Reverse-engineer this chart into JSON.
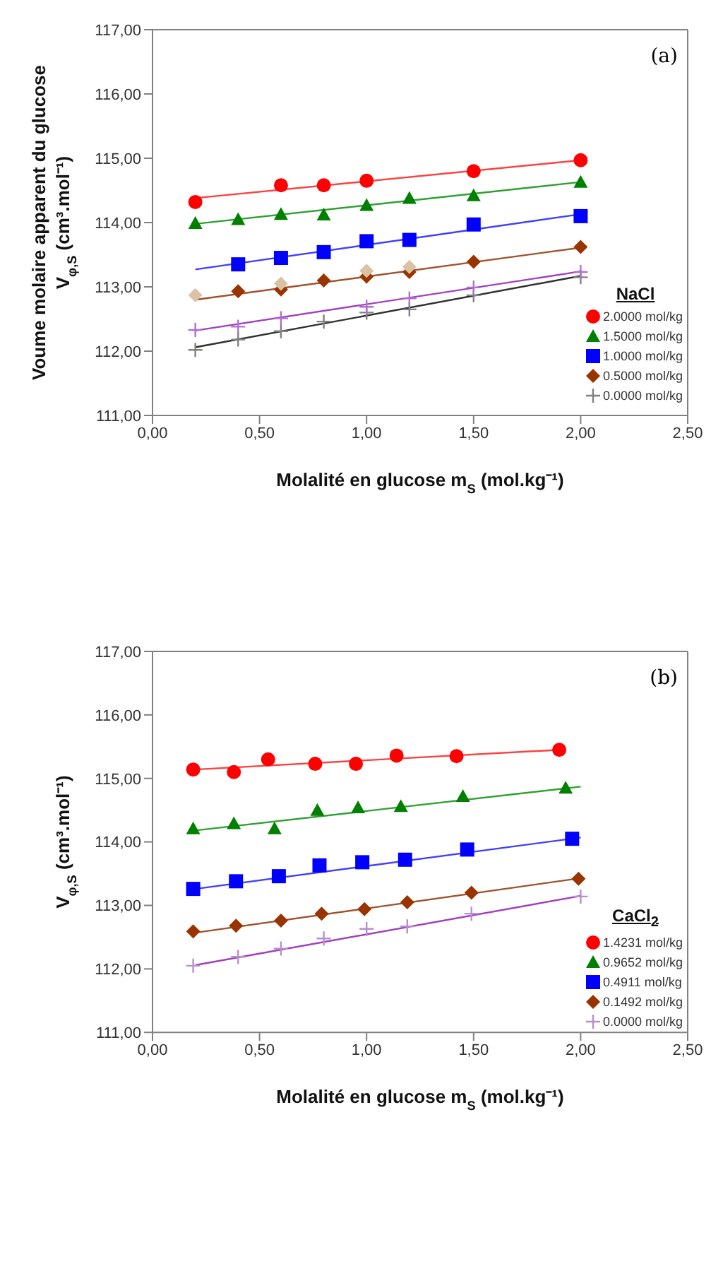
{
  "chart_data": [
    {
      "type": "scatter",
      "ylabel": "Voume molaire apparent du glucose\nV$_{φ,S}$ (cm³.mol⁻¹)",
      "xlabel": "Molalité en glucose m$_{S}$ (mol.kg⁻¹)",
      "legend_title": "NaCl",
      "legend": "bottom right",
      "annotations": [
        "(a)"
      ],
      "xlim": [
        0,
        2.5
      ],
      "ylim": [
        111,
        117
      ],
      "xticks": [
        {
          "value": 0,
          "label": "0,00"
        },
        {
          "value": 0.5,
          "label": "0,50"
        },
        {
          "value": 1,
          "label": "1,00"
        },
        {
          "value": 1.5,
          "label": "1,50"
        },
        {
          "value": 2,
          "label": "2,00"
        },
        {
          "value": 2.5,
          "label": "2,50"
        }
      ],
      "yticks": [
        {
          "value": 111,
          "label": "111,00"
        },
        {
          "value": 112,
          "label": "112,00"
        },
        {
          "value": 113,
          "label": "113,00"
        },
        {
          "value": 114,
          "label": "114,00"
        },
        {
          "value": 115,
          "label": "115,00"
        },
        {
          "value": 116,
          "label": "116,00"
        },
        {
          "value": 117,
          "label": "117,00"
        }
      ],
      "series": [
        {
          "name": "2.0000 mol/kg",
          "color": "#ff0000",
          "marker": "circle",
          "x": [
            0.2,
            0.6,
            0.8,
            1.0,
            1.5,
            2.0
          ],
          "values": [
            114.32,
            114.58,
            114.58,
            114.65,
            114.8,
            114.97
          ]
        },
        {
          "name": "1.5000 mol/kg",
          "color": "#008000",
          "marker": "triangle",
          "x": [
            0.2,
            0.4,
            0.6,
            0.8,
            1.0,
            1.2,
            1.5,
            2.0
          ],
          "values": [
            113.99,
            114.05,
            114.13,
            114.12,
            114.27,
            114.38,
            114.42,
            114.63
          ]
        },
        {
          "name": "1.0000 mol/kg",
          "color": "#0000ff",
          "marker": "square",
          "x": [
            0.4,
            0.6,
            0.8,
            1.0,
            1.2,
            1.5,
            2.0
          ],
          "values": [
            113.35,
            113.45,
            113.54,
            113.71,
            113.73,
            113.97,
            114.1
          ]
        },
        {
          "name": "0.5000 mol/kg",
          "color": "#993300",
          "marker": "diamond",
          "x": [
            0.4,
            0.6,
            0.8,
            1.0,
            1.2,
            1.5,
            2.0
          ],
          "values": [
            112.93,
            112.96,
            113.1,
            113.16,
            113.23,
            113.39,
            113.62
          ]
        },
        {
          "name": "0.0000 mol/kg",
          "color": "#808080",
          "marker": "cross",
          "x": [
            0.2,
            0.4,
            0.6,
            0.8,
            1.0,
            1.2,
            1.5,
            2.0
          ],
          "values": [
            112.02,
            112.18,
            112.31,
            112.46,
            112.6,
            112.65,
            112.87,
            113.15
          ]
        },
        {
          "color": "#d9c3a5",
          "marker": "diamond",
          "x": [
            0.2,
            0.6,
            1.0,
            1.2
          ],
          "values": [
            112.87,
            113.05,
            113.25,
            113.31
          ]
        },
        {
          "color": "#b070d0",
          "marker": "cross",
          "x": [
            0.2,
            0.4,
            0.6,
            1.0,
            1.2,
            1.5,
            2.0
          ],
          "values": [
            112.33,
            112.38,
            112.51,
            112.69,
            112.82,
            112.99,
            113.23
          ]
        },
        {
          "type": "line",
          "color": "#ff4040",
          "x": [
            0.2,
            2.0
          ],
          "values": [
            114.38,
            114.97
          ]
        },
        {
          "type": "line",
          "color": "#30a030",
          "x": [
            0.2,
            2.0
          ],
          "values": [
            113.98,
            114.63
          ]
        },
        {
          "type": "line",
          "color": "#4040ff",
          "x": [
            0.2,
            2.0
          ],
          "values": [
            113.27,
            114.13
          ]
        },
        {
          "type": "line",
          "color": "#a0522d",
          "x": [
            0.2,
            2.0
          ],
          "values": [
            112.8,
            113.61
          ]
        },
        {
          "type": "line",
          "color": "#a040c0",
          "x": [
            0.2,
            2.0
          ],
          "values": [
            112.32,
            113.24
          ]
        },
        {
          "type": "line",
          "color": "#303030",
          "x": [
            0.2,
            2.0
          ],
          "values": [
            112.06,
            113.17
          ]
        }
      ]
    },
    {
      "type": "scatter",
      "ylabel": "V$_{φ,S}$ (cm³.mol⁻¹)",
      "xlabel": "Molalité en glucose m$_{S}$ (mol.kg⁻¹)",
      "legend_title": "CaCl$_{2}$",
      "legend": "bottom right",
      "annotations": [
        "(b)"
      ],
      "xlim": [
        0,
        2.5
      ],
      "ylim": [
        111,
        117
      ],
      "xticks": [
        {
          "value": 0,
          "label": "0,00"
        },
        {
          "value": 0.5,
          "label": "0,50"
        },
        {
          "value": 1,
          "label": "1,00"
        },
        {
          "value": 1.5,
          "label": "1,50"
        },
        {
          "value": 2,
          "label": "2,00"
        },
        {
          "value": 2.5,
          "label": "2,50"
        }
      ],
      "yticks": [
        {
          "value": 111,
          "label": "111,00"
        },
        {
          "value": 112,
          "label": "112,00"
        },
        {
          "value": 113,
          "label": "113,00"
        },
        {
          "value": 114,
          "label": "114,00"
        },
        {
          "value": 115,
          "label": "115,00"
        },
        {
          "value": 116,
          "label": "116,00"
        },
        {
          "value": 117,
          "label": "117,00"
        }
      ],
      "series": [
        {
          "name": "1.4231 mol/kg",
          "color": "#ff0000",
          "marker": "circle",
          "x": [
            0.19,
            0.38,
            0.54,
            0.76,
            0.95,
            1.14,
            1.42,
            1.9
          ],
          "values": [
            115.14,
            115.1,
            115.3,
            115.23,
            115.23,
            115.36,
            115.35,
            115.45
          ]
        },
        {
          "name": "0.9652 mol/kg",
          "color": "#008000",
          "marker": "triangle",
          "x": [
            0.19,
            0.38,
            0.57,
            0.77,
            0.96,
            1.16,
            1.45,
            1.93
          ],
          "values": [
            114.21,
            114.29,
            114.21,
            114.5,
            114.54,
            114.56,
            114.72,
            114.85
          ]
        },
        {
          "name": "0.4911 mol/kg",
          "color": "#0000ff",
          "marker": "square",
          "x": [
            0.19,
            0.39,
            0.59,
            0.78,
            0.98,
            1.18,
            1.47,
            1.96
          ],
          "values": [
            113.26,
            113.38,
            113.46,
            113.63,
            113.68,
            113.72,
            113.88,
            114.05
          ]
        },
        {
          "name": "0.1492 mol/kg",
          "color": "#993300",
          "marker": "diamond",
          "x": [
            0.19,
            0.39,
            0.6,
            0.79,
            0.99,
            1.19,
            1.49,
            1.99
          ],
          "values": [
            112.59,
            112.68,
            112.76,
            112.87,
            112.94,
            113.05,
            113.2,
            113.42
          ]
        },
        {
          "name": "0.0000 mol/kg",
          "color": "#b58fd0",
          "marker": "cross",
          "x": [
            0.19,
            0.4,
            0.6,
            0.8,
            1.0,
            1.19,
            1.49,
            2.0
          ],
          "values": [
            112.05,
            112.19,
            112.32,
            112.48,
            112.63,
            112.67,
            112.87,
            113.14
          ]
        },
        {
          "type": "line",
          "color": "#ff4040",
          "x": [
            0.2,
            1.9
          ],
          "values": [
            115.14,
            115.45
          ]
        },
        {
          "type": "line",
          "color": "#30a030",
          "x": [
            0.2,
            2.0
          ],
          "values": [
            114.18,
            114.87
          ]
        },
        {
          "type": "line",
          "color": "#4040ff",
          "x": [
            0.2,
            2.0
          ],
          "values": [
            113.26,
            114.07
          ]
        },
        {
          "type": "line",
          "color": "#a0522d",
          "x": [
            0.2,
            2.0
          ],
          "values": [
            112.57,
            113.43
          ]
        },
        {
          "type": "line",
          "color": "#a040c0",
          "x": [
            0.2,
            2.0
          ],
          "values": [
            112.06,
            113.15
          ]
        }
      ]
    }
  ]
}
